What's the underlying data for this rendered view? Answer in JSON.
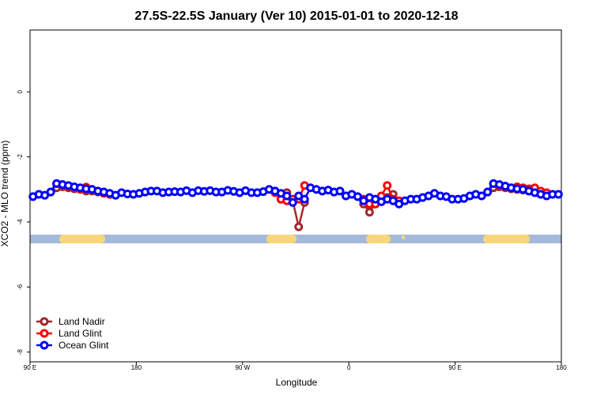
{
  "chart_data": {
    "type": "line",
    "title": "27.5S-22.5S January (Ver 10)   2015-01-01 to 2020-12-18",
    "x_label": "Longitude",
    "y_label": "XCO2 - MLO trend (ppm)",
    "xlim": [
      90,
      540
    ],
    "ylim": [
      -8.3,
      1.9
    ],
    "xticks": [
      {
        "value": 90,
        "label": "90 E"
      },
      180,
      {
        "value": 270,
        "label": "90 W"
      },
      {
        "value": 360,
        "label": "0"
      },
      {
        "value": 450,
        "label": "90 E"
      },
      {
        "value": 540,
        "label": "180"
      }
    ],
    "yticks": [
      0,
      -2,
      -4,
      -6,
      -8
    ],
    "legend": "lower left",
    "x": [
      92.5,
      97.5,
      102.5,
      107.5,
      112.5,
      117.5,
      122.5,
      127.5,
      132.5,
      137.5,
      142.5,
      147.5,
      152.5,
      157.5,
      162.5,
      167.5,
      172.5,
      177.5,
      182.5,
      187.5,
      192.5,
      197.5,
      202.5,
      207.5,
      212.5,
      217.5,
      222.5,
      227.5,
      232.5,
      237.5,
      242.5,
      247.5,
      252.5,
      257.5,
      262.5,
      267.5,
      272.5,
      277.5,
      282.5,
      287.5,
      292.5,
      297.5,
      302.5,
      307.5,
      312.5,
      317.5,
      322.5,
      327.5,
      332.5,
      337.5,
      342.5,
      347.5,
      352.5,
      357.5,
      362.5,
      367.5,
      372.5,
      377.5,
      382.5,
      387.5,
      392.5,
      397.5,
      402.5,
      407.5,
      412.5,
      417.5,
      422.5,
      427.5,
      432.5,
      437.5,
      442.5,
      447.5,
      452.5,
      457.5,
      462.5,
      467.5,
      472.5,
      477.5,
      482.5,
      487.5,
      492.5,
      497.5,
      502.5,
      507.5,
      512.5,
      517.5,
      522.5,
      527.5,
      532.5,
      537.5
    ],
    "series": [
      {
        "name": "Land Nadir",
        "color": "#a0282c",
        "values": [
          null,
          null,
          null,
          null,
          -2.95,
          -2.92,
          -2.95,
          -2.98,
          -3.0,
          -3.05,
          -3.05,
          -3.08,
          -3.12,
          -3.15,
          null,
          null,
          null,
          null,
          null,
          null,
          null,
          null,
          null,
          null,
          null,
          null,
          null,
          null,
          null,
          null,
          null,
          null,
          null,
          null,
          null,
          null,
          null,
          null,
          null,
          null,
          null,
          -3.05,
          -3.3,
          -3.1,
          -3.35,
          -4.15,
          -3.4,
          null,
          null,
          null,
          null,
          null,
          null,
          null,
          null,
          null,
          -3.45,
          -3.7,
          -3.45,
          -3.3,
          -3.25,
          -3.15,
          -3.4,
          null,
          null,
          null,
          null,
          null,
          null,
          null,
          null,
          null,
          null,
          null,
          null,
          null,
          null,
          null,
          -2.95,
          -2.92,
          -2.95,
          -2.98,
          -3.0,
          -3.02,
          -3.05,
          -3.08,
          -3.1,
          -3.15,
          null,
          null
        ]
      },
      {
        "name": "Land Glint",
        "color": "#ff0000",
        "values": [
          null,
          null,
          null,
          null,
          -2.82,
          -2.85,
          -2.9,
          -2.95,
          -2.98,
          -2.93,
          -3.0,
          -3.05,
          -3.1,
          -3.15,
          null,
          null,
          null,
          null,
          null,
          null,
          null,
          null,
          null,
          null,
          null,
          null,
          null,
          null,
          null,
          null,
          null,
          null,
          null,
          null,
          null,
          null,
          null,
          null,
          null,
          null,
          null,
          -3.1,
          -3.3,
          -3.35,
          -3.3,
          -3.3,
          -2.88,
          null,
          null,
          null,
          null,
          null,
          null,
          null,
          null,
          null,
          -3.3,
          -3.45,
          -3.45,
          -3.2,
          -2.88,
          -3.3,
          -3.35,
          null,
          null,
          null,
          null,
          null,
          null,
          null,
          null,
          null,
          null,
          null,
          null,
          null,
          null,
          null,
          -2.82,
          -2.88,
          -2.9,
          -2.95,
          -2.92,
          -2.95,
          -2.98,
          -2.95,
          -3.05,
          -3.1,
          null,
          null
        ]
      },
      {
        "name": "Ocean Glint",
        "color": "#0000ff",
        "values": [
          -3.22,
          -3.15,
          -3.18,
          -3.08,
          -2.82,
          -2.85,
          -2.88,
          -2.92,
          -2.95,
          -2.98,
          -3.0,
          -3.05,
          -3.08,
          -3.12,
          -3.18,
          -3.1,
          -3.14,
          -3.15,
          -3.12,
          -3.08,
          -3.05,
          -3.05,
          -3.1,
          -3.08,
          -3.07,
          -3.08,
          -3.04,
          -3.1,
          -3.04,
          -3.06,
          -3.04,
          -3.08,
          -3.08,
          -3.03,
          -3.06,
          -3.1,
          -3.04,
          -3.1,
          -3.1,
          -3.07,
          -3.0,
          -3.05,
          -3.12,
          -3.2,
          -3.4,
          -3.2,
          -3.3,
          -2.95,
          -3.0,
          -3.05,
          -3.02,
          -3.08,
          -3.05,
          -3.2,
          -3.15,
          -3.22,
          -3.35,
          -3.25,
          -3.3,
          -3.38,
          -3.3,
          -3.35,
          -3.45,
          -3.35,
          -3.3,
          -3.3,
          -3.25,
          -3.2,
          -3.12,
          -3.2,
          -3.22,
          -3.3,
          -3.3,
          -3.28,
          -3.2,
          -3.15,
          -3.2,
          -3.08,
          -2.82,
          -2.85,
          -2.9,
          -2.95,
          -2.98,
          -3.0,
          -3.05,
          -3.1,
          -3.15,
          -3.2,
          -3.15,
          -3.15
        ]
      }
    ]
  }
}
